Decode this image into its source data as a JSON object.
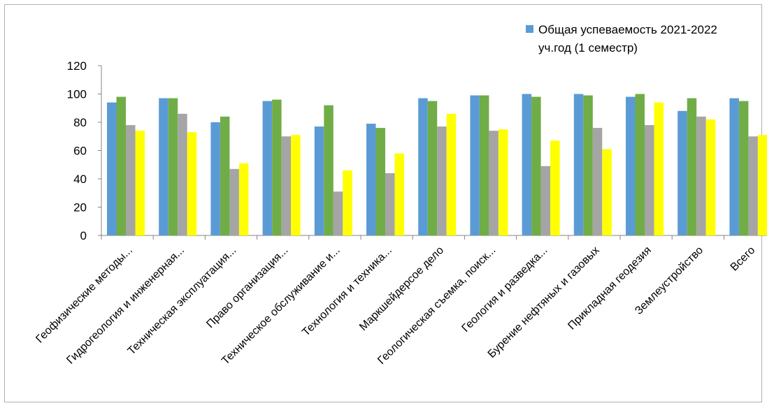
{
  "chart_data": {
    "type": "bar",
    "categories": [
      "Геофизические методы...",
      "Гидрогеология и инженерная...",
      "Техническая эксплуатация...",
      "Право организация...",
      "Техническое обслуживание  и...",
      "Технология и техника...",
      "Маркшейдерсое дело",
      "Геологическая съемка, поиск...",
      "Геология и разведка...",
      "Бурение нефтяных и газовых",
      "Прикладная геодезия",
      "Землеустройство",
      "Всего"
    ],
    "series": [
      {
        "name": "Общая успеваемость 2021-2022 уч.год (1 семестр)",
        "color": "#5b9bd5",
        "values": [
          94,
          97,
          80,
          95,
          77,
          79,
          97,
          99,
          100,
          100,
          98,
          88,
          97
        ]
      },
      {
        "name": "",
        "color": "#70ad47",
        "values": [
          98,
          97,
          84,
          96,
          92,
          76,
          95,
          99,
          98,
          99,
          100,
          97,
          95
        ]
      },
      {
        "name": "",
        "color": "#a5a5a5",
        "values": [
          78,
          86,
          47,
          70,
          31,
          44,
          77,
          74,
          49,
          76,
          78,
          84,
          70
        ]
      },
      {
        "name": "",
        "color": "#ffff00",
        "values": [
          74,
          73,
          51,
          71,
          46,
          58,
          86,
          75,
          67,
          61,
          94,
          82,
          71
        ]
      }
    ],
    "ylim": [
      0,
      120
    ],
    "yticks": [
      "0",
      "20",
      "40",
      "60",
      "80",
      "100",
      "120"
    ],
    "legend": {
      "position": "top-right",
      "line1": "Общая успеваемость 2021-2022",
      "line2": "уч.год (1 семестр)"
    },
    "grid": false
  }
}
